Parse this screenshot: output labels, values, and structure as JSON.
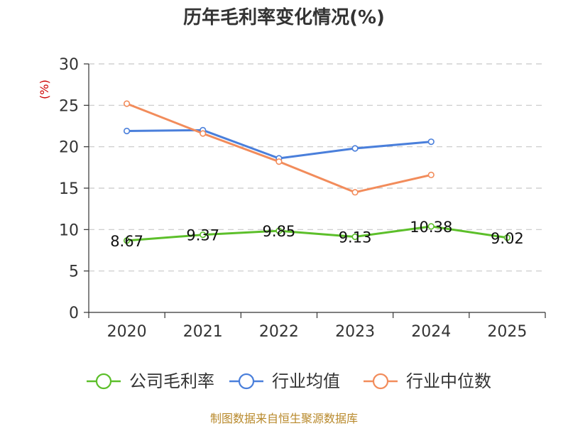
{
  "chart_data": {
    "type": "line",
    "title": "历年毛利率变化情况(%)",
    "ylabel": "(%)",
    "ylim": [
      0,
      30
    ],
    "yticks": [
      0,
      5,
      10,
      15,
      20,
      25,
      30
    ],
    "categories": [
      "2020",
      "2021",
      "2022",
      "2023",
      "2024",
      "2025"
    ],
    "grid": true,
    "legend_position": "bottom",
    "series": [
      {
        "name": "公司毛利率",
        "color": "#5cbf2a",
        "values": [
          8.67,
          9.37,
          9.85,
          9.13,
          10.38,
          9.02
        ],
        "labels": [
          "8.67",
          "9.37",
          "9.85",
          "9.13",
          "10.38",
          "9.02"
        ]
      },
      {
        "name": "行业均值",
        "color": "#4a7fdb",
        "values": [
          21.9,
          22.0,
          18.6,
          19.8,
          20.6,
          null
        ]
      },
      {
        "name": "行业中位数",
        "color": "#f28c5b",
        "values": [
          25.2,
          21.6,
          18.2,
          14.5,
          16.6,
          null
        ]
      }
    ]
  },
  "source": "制图数据来自恒生聚源数据库"
}
